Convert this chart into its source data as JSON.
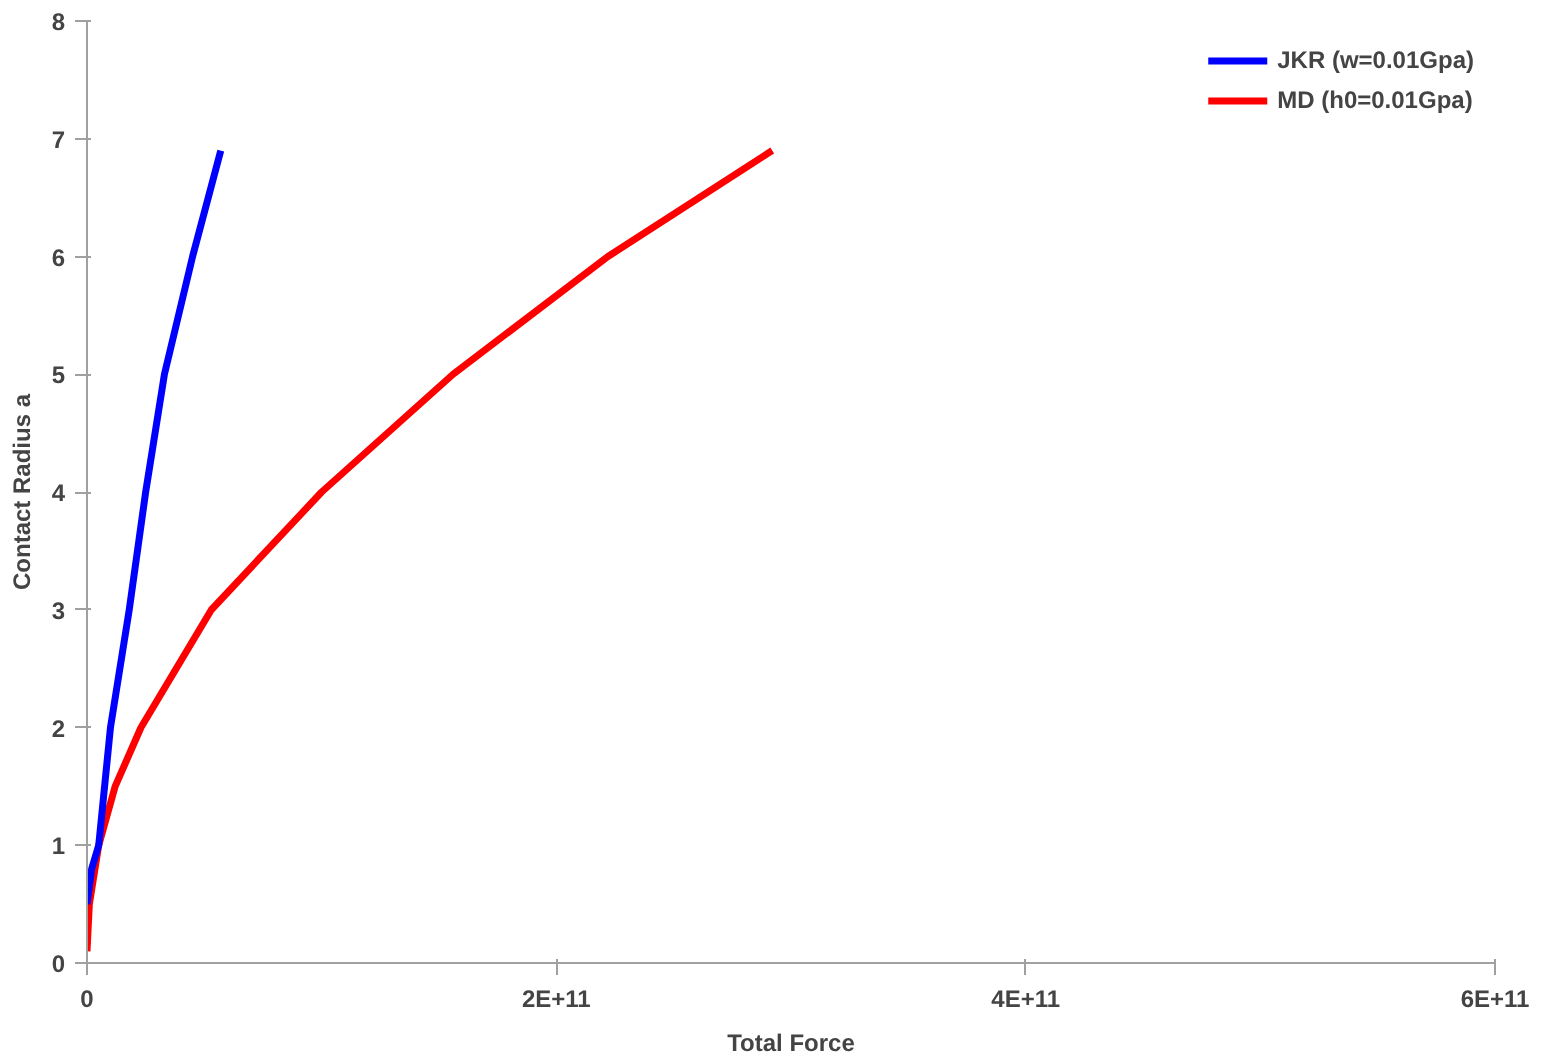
{
  "chart_data": {
    "type": "line",
    "xlabel": "Total Force",
    "ylabel": "Contact Radius a",
    "xlim": [
      0,
      600000000000.0
    ],
    "xticks": [
      {
        "value": 0,
        "label": "0"
      },
      {
        "value": 200000000000.0,
        "label": "2E+11"
      },
      {
        "value": 400000000000.0,
        "label": "4E+11"
      },
      {
        "value": 600000000000.0,
        "label": "6E+11"
      }
    ],
    "ylim": [
      0,
      8
    ],
    "yticks": [
      0,
      1,
      2,
      3,
      4,
      5,
      6,
      7,
      8
    ],
    "grid": false,
    "legend": "top right",
    "marker": "none",
    "series": [
      {
        "name": "JKR (w=0.01Gpa)",
        "color": "#0000ff",
        "x": [
          0,
          2000000000.0,
          5000000000.0,
          10000000000.0,
          18000000000.0,
          25000000000.0,
          33000000000.0,
          45000000000.0,
          57000000000.0
        ],
        "values": [
          0.5,
          0.8,
          1,
          2,
          3,
          4,
          5,
          6,
          6.9
        ]
      },
      {
        "name": "MD (h0=0.01Gpa)",
        "color": "#ff0000",
        "x": [
          0,
          1000000000.0,
          5000000000.0,
          12000000000.0,
          23000000000.0,
          53000000000.0,
          100000000000.0,
          156000000000.0,
          222000000000.0,
          292000000000.0
        ],
        "values": [
          0.1,
          0.5,
          1,
          1.5,
          2,
          3,
          4,
          5,
          6,
          6.9
        ]
      }
    ]
  }
}
